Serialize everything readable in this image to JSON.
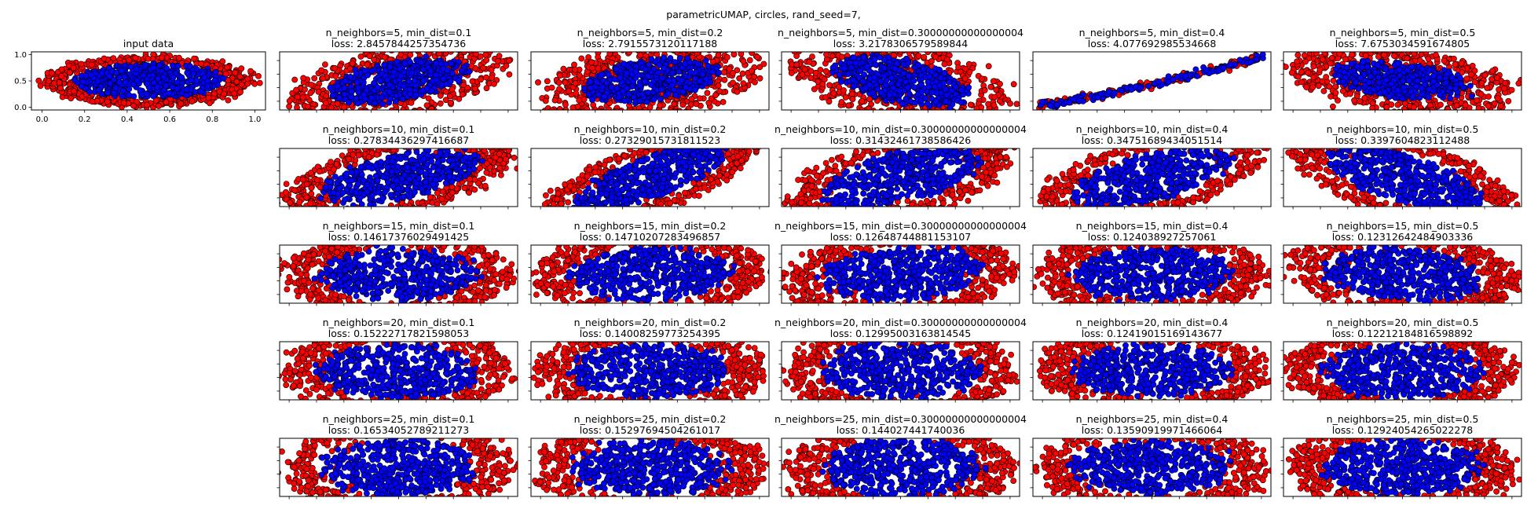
{
  "figure": {
    "suptitle": "parametricUMAP, circles, rand_seed=7,"
  },
  "colors": {
    "outer_class": "#ff0000",
    "inner_class": "#0000ff",
    "edge": "#000000"
  },
  "chart_data": [
    {
      "type": "scatter",
      "panel": "input",
      "title": "input data",
      "xlim": [
        -0.05,
        1.05
      ],
      "ylim": [
        -0.05,
        1.05
      ],
      "xticks": [
        0.0,
        0.2,
        0.4,
        0.6,
        0.8,
        1.0
      ],
      "yticks": [
        0.0,
        0.5,
        1.0
      ],
      "xtick_labels": [
        "0.0",
        "0.2",
        "0.4",
        "0.6",
        "0.8",
        "1.0"
      ],
      "ytick_labels": [
        "0.0",
        "0.5",
        "1.0"
      ],
      "series": [
        {
          "color": "red",
          "shape": "ring",
          "center": [
            0.5,
            0.5
          ],
          "rx": 0.47,
          "ry": 0.46
        },
        {
          "color": "blue",
          "shape": "disk",
          "center": [
            0.5,
            0.5
          ],
          "rx": 0.33,
          "ry": 0.32
        }
      ]
    },
    {
      "type": "scatter",
      "panel": "r0c0",
      "title": "n_neighbors=5, min_dist=0.1",
      "loss": "loss: 2.8457844257354736",
      "shape": "blob",
      "angle": -10,
      "aspect": 0.28
    },
    {
      "type": "scatter",
      "panel": "r0c1",
      "title": "n_neighbors=5, min_dist=0.2",
      "loss": "loss: 2.7915573120117188",
      "shape": "blob",
      "angle": -8,
      "aspect": 0.3
    },
    {
      "type": "scatter",
      "panel": "r0c2",
      "title": "n_neighbors=5, min_dist=0.30000000000000004",
      "loss": "loss: 3.2178306579589844",
      "shape": "blob",
      "angle": 12,
      "aspect": 0.32
    },
    {
      "type": "scatter",
      "panel": "r0c3",
      "title": "n_neighbors=5, min_dist=0.4",
      "loss": "loss: 4.077692985534668",
      "shape": "curve",
      "angle": 0,
      "aspect": 0.05
    },
    {
      "type": "scatter",
      "panel": "r0c4",
      "title": "n_neighbors=5, min_dist=0.5",
      "loss": "loss: 7.6753034591674805",
      "shape": "blob",
      "angle": 6,
      "aspect": 0.25
    },
    {
      "type": "scatter",
      "panel": "r1c0",
      "title": "n_neighbors=10, min_dist=0.1",
      "loss": "loss: 0.27834436297416687",
      "shape": "ellipse",
      "angle": -12,
      "aspect": 0.28
    },
    {
      "type": "scatter",
      "panel": "r1c1",
      "title": "n_neighbors=10, min_dist=0.2",
      "loss": "loss: 0.27329015731811523",
      "shape": "ellipse",
      "angle": -20,
      "aspect": 0.26
    },
    {
      "type": "scatter",
      "panel": "r1c2",
      "title": "n_neighbors=10, min_dist=0.30000000000000004",
      "loss": "loss: 0.31432461738586426",
      "shape": "ellipse",
      "angle": -14,
      "aspect": 0.32
    },
    {
      "type": "scatter",
      "panel": "r1c3",
      "title": "n_neighbors=10, min_dist=0.4",
      "loss": "loss: 0.34751689434051514",
      "shape": "ellipse",
      "angle": -14,
      "aspect": 0.3
    },
    {
      "type": "scatter",
      "panel": "r1c4",
      "title": "n_neighbors=10, min_dist=0.5",
      "loss": "loss: 0.3397604823112488",
      "shape": "ellipse",
      "angle": 16,
      "aspect": 0.3
    },
    {
      "type": "scatter",
      "panel": "r2c0",
      "title": "n_neighbors=15, min_dist=0.1",
      "loss": "loss: 0.14617376029491425",
      "shape": "ellipse",
      "angle": 0,
      "aspect": 0.32
    },
    {
      "type": "scatter",
      "panel": "r2c1",
      "title": "n_neighbors=15, min_dist=0.2",
      "loss": "loss: 0.14710207283496857",
      "shape": "ellipse",
      "angle": -2,
      "aspect": 0.34
    },
    {
      "type": "scatter",
      "panel": "r2c2",
      "title": "n_neighbors=15, min_dist=0.30000000000000004",
      "loss": "loss: 0.12648744881153107",
      "shape": "ellipse",
      "angle": -4,
      "aspect": 0.34
    },
    {
      "type": "scatter",
      "panel": "r2c3",
      "title": "n_neighbors=15, min_dist=0.4",
      "loss": "loss: 0.124038927257061",
      "shape": "ellipse",
      "angle": 0,
      "aspect": 0.33
    },
    {
      "type": "scatter",
      "panel": "r2c4",
      "title": "n_neighbors=15, min_dist=0.5",
      "loss": "loss: 0.12312642484903336",
      "shape": "ellipse",
      "angle": 4,
      "aspect": 0.33
    },
    {
      "type": "scatter",
      "panel": "r3c0",
      "title": "n_neighbors=20, min_dist=0.1",
      "loss": "loss: 0.15222717821598053",
      "shape": "ellipse",
      "angle": 0,
      "aspect": 0.34
    },
    {
      "type": "scatter",
      "panel": "r3c1",
      "title": "n_neighbors=20, min_dist=0.2",
      "loss": "loss: 0.14008259773254395",
      "shape": "ellipse",
      "angle": 0,
      "aspect": 0.34
    },
    {
      "type": "scatter",
      "panel": "r3c2",
      "title": "n_neighbors=20, min_dist=0.30000000000000004",
      "loss": "loss: 0.12995003163814545",
      "shape": "ellipse",
      "angle": 0,
      "aspect": 0.36
    },
    {
      "type": "scatter",
      "panel": "r3c3",
      "title": "n_neighbors=20, min_dist=0.4",
      "loss": "loss: 0.12419015169143677",
      "shape": "ellipse",
      "angle": 0,
      "aspect": 0.33
    },
    {
      "type": "scatter",
      "panel": "r3c4",
      "title": "n_neighbors=20, min_dist=0.5",
      "loss": "loss: 0.12212184816598892",
      "shape": "ellipse",
      "angle": 0,
      "aspect": 0.34
    },
    {
      "type": "scatter",
      "panel": "r4c0",
      "title": "n_neighbors=25, min_dist=0.1",
      "loss": "loss: 0.16534052789211273",
      "shape": "ellipse",
      "angle": 0,
      "aspect": 0.36
    },
    {
      "type": "scatter",
      "panel": "r4c1",
      "title": "n_neighbors=25, min_dist=0.2",
      "loss": "loss: 0.15297694504261017",
      "shape": "ellipse",
      "angle": 0,
      "aspect": 0.35
    },
    {
      "type": "scatter",
      "panel": "r4c2",
      "title": "n_neighbors=25, min_dist=0.30000000000000004",
      "loss": "loss: 0.144027441740036",
      "shape": "ellipse",
      "angle": 0,
      "aspect": 0.36
    },
    {
      "type": "scatter",
      "panel": "r4c3",
      "title": "n_neighbors=25, min_dist=0.4",
      "loss": "loss: 0.13590919971466064",
      "shape": "ellipse",
      "angle": 0,
      "aspect": 0.34
    },
    {
      "type": "scatter",
      "panel": "r4c4",
      "title": "n_neighbors=25, min_dist=0.5",
      "loss": "loss: 0.12924054265022278",
      "shape": "ellipse",
      "angle": 0,
      "aspect": 0.35
    }
  ]
}
